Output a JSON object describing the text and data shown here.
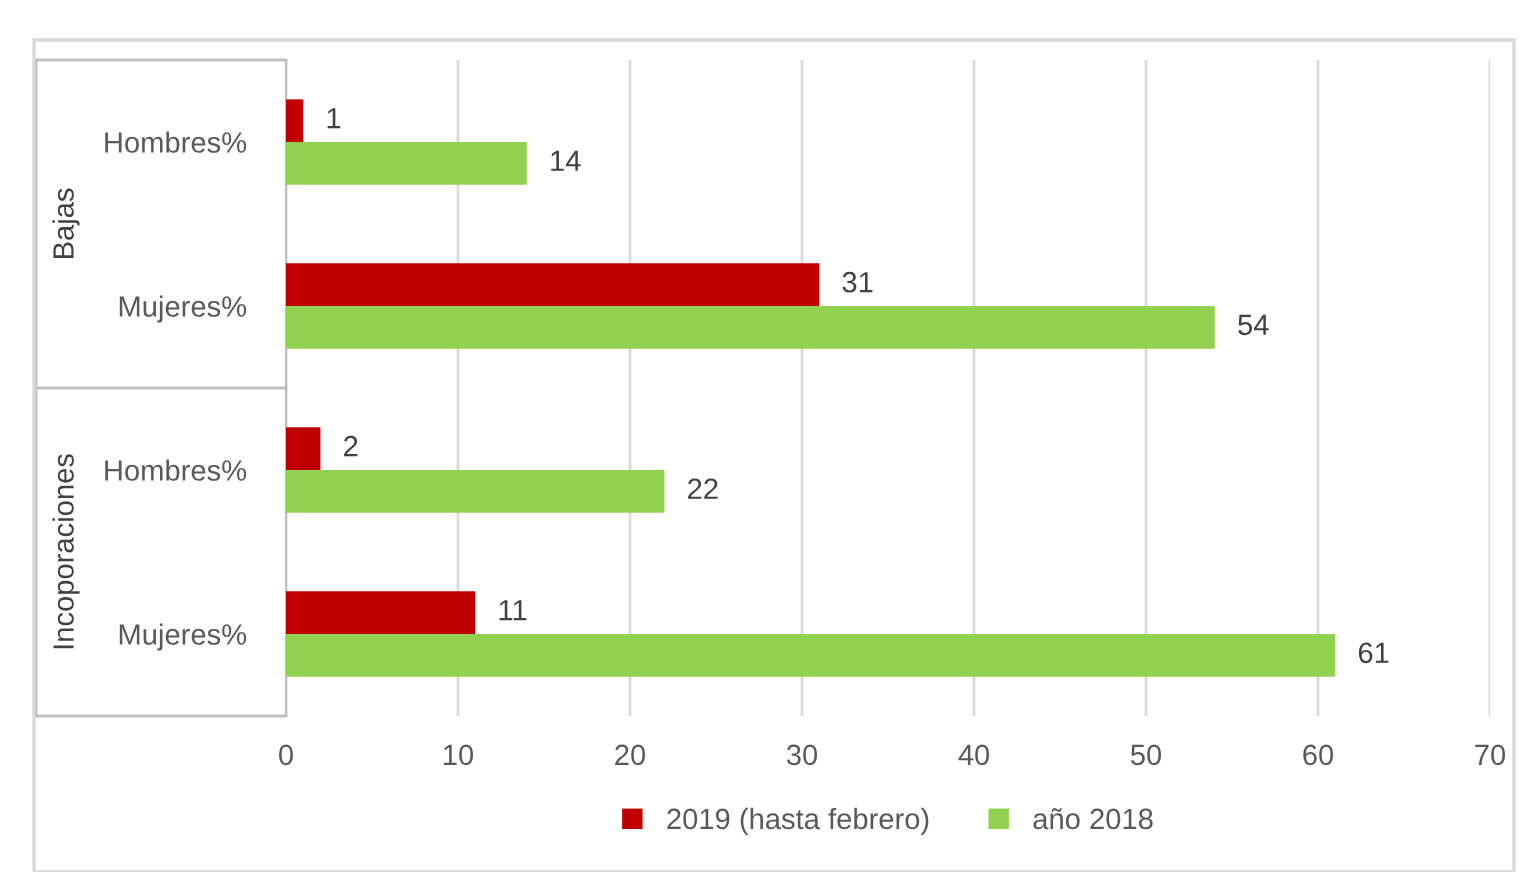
{
  "chart_data": {
    "type": "bar",
    "orientation": "horizontal",
    "categories": [
      "Hombres%",
      "Mujeres%",
      "Hombres%",
      "Mujeres%"
    ],
    "series": [
      {
        "name": "2019 (hasta febrero)",
        "color": "#c00000",
        "values": [
          1,
          31,
          2,
          11
        ]
      },
      {
        "name": "año 2018",
        "color": "#92d050",
        "values": [
          14,
          54,
          22,
          61
        ]
      }
    ],
    "xlim": [
      0,
      70
    ],
    "xticks": [
      0,
      10,
      20,
      30,
      40,
      50,
      60,
      70
    ],
    "grid": "x",
    "legend": "bottom",
    "data_labels": true,
    "annotations": [
      "Bajas",
      "Incoporaciones"
    ]
  }
}
